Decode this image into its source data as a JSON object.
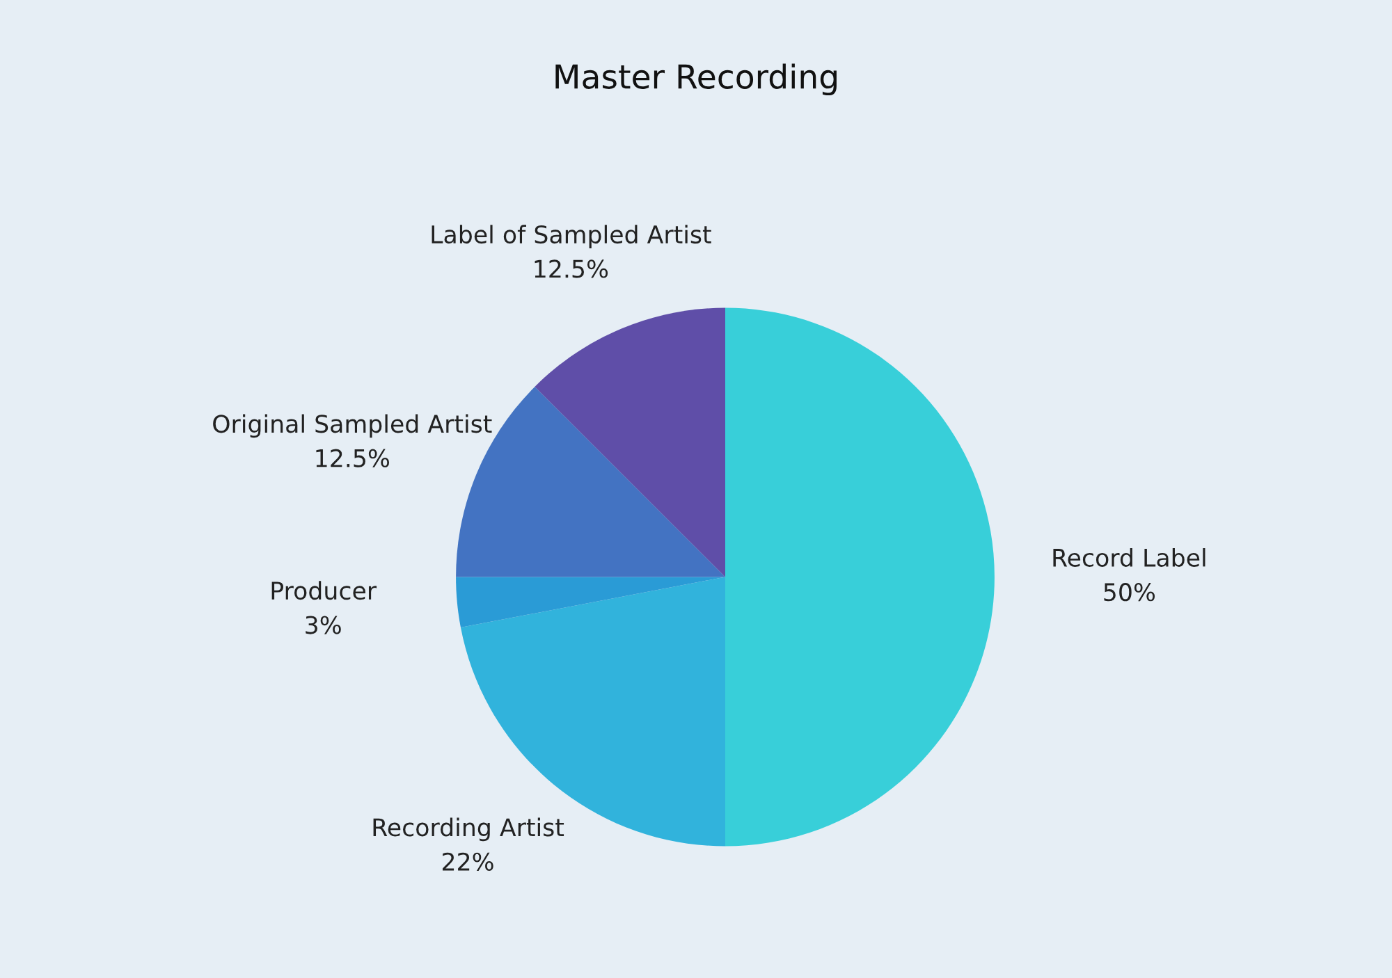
{
  "chart_data": {
    "type": "pie",
    "title": "Master Recording",
    "categories": [
      "Record Label",
      "Recording Artist",
      "Producer",
      "Original Sampled Artist",
      "Label of Sampled Artist"
    ],
    "values": [
      50,
      22,
      3,
      12.5,
      12.5
    ],
    "value_labels": [
      "50%",
      "22%",
      "3%",
      "12.5%",
      "12.5%"
    ],
    "colors": [
      "#38cfd9",
      "#31b3dc",
      "#2a9bd6",
      "#4373c2",
      "#5f4ea8"
    ],
    "legend": false
  }
}
